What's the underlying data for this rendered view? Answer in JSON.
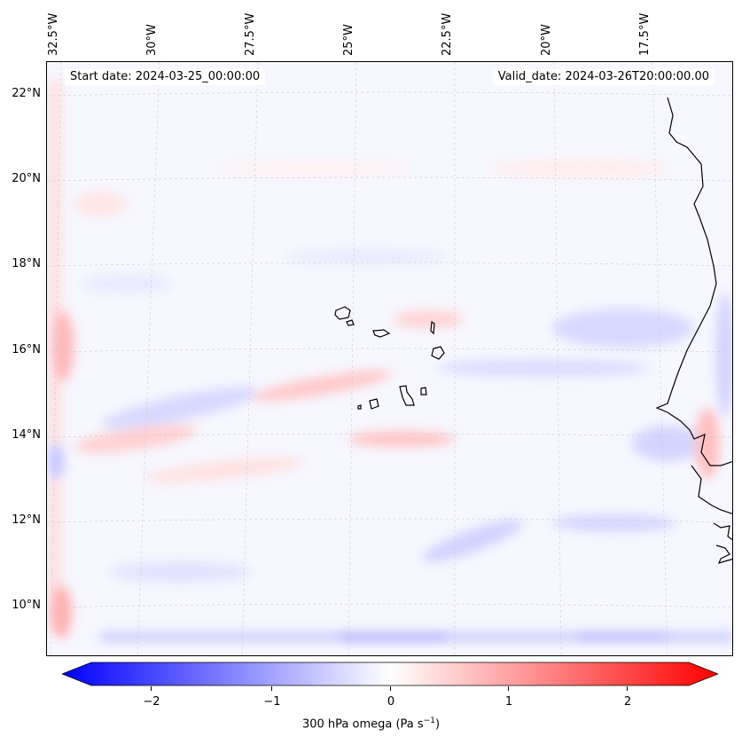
{
  "map": {
    "start_date": "Start date: 2024-03-25_00:00:00",
    "valid_date": "Valid_date: 2024-03-26T20:00:00.00",
    "lon_labels": [
      "32.5°W",
      "30°W",
      "27.5°W",
      "25°W",
      "22.5°W",
      "20°W",
      "17.5°W"
    ],
    "lat_labels": [
      "22°N",
      "20°N",
      "18°N",
      "16°N",
      "14°N",
      "12°N",
      "10°N"
    ],
    "colors": {
      "negative": "#0000ff",
      "neutral": "#ffffff",
      "positive": "#ff0000",
      "coast": "#000000"
    }
  },
  "colorbar": {
    "ticks": [
      "−2",
      "−1",
      "0",
      "1",
      "2"
    ],
    "label_prefix": "300 hPa omega (Pa s",
    "label_sup": "−1",
    "label_suffix": ")",
    "range": [
      -2.5,
      2.5
    ]
  }
}
